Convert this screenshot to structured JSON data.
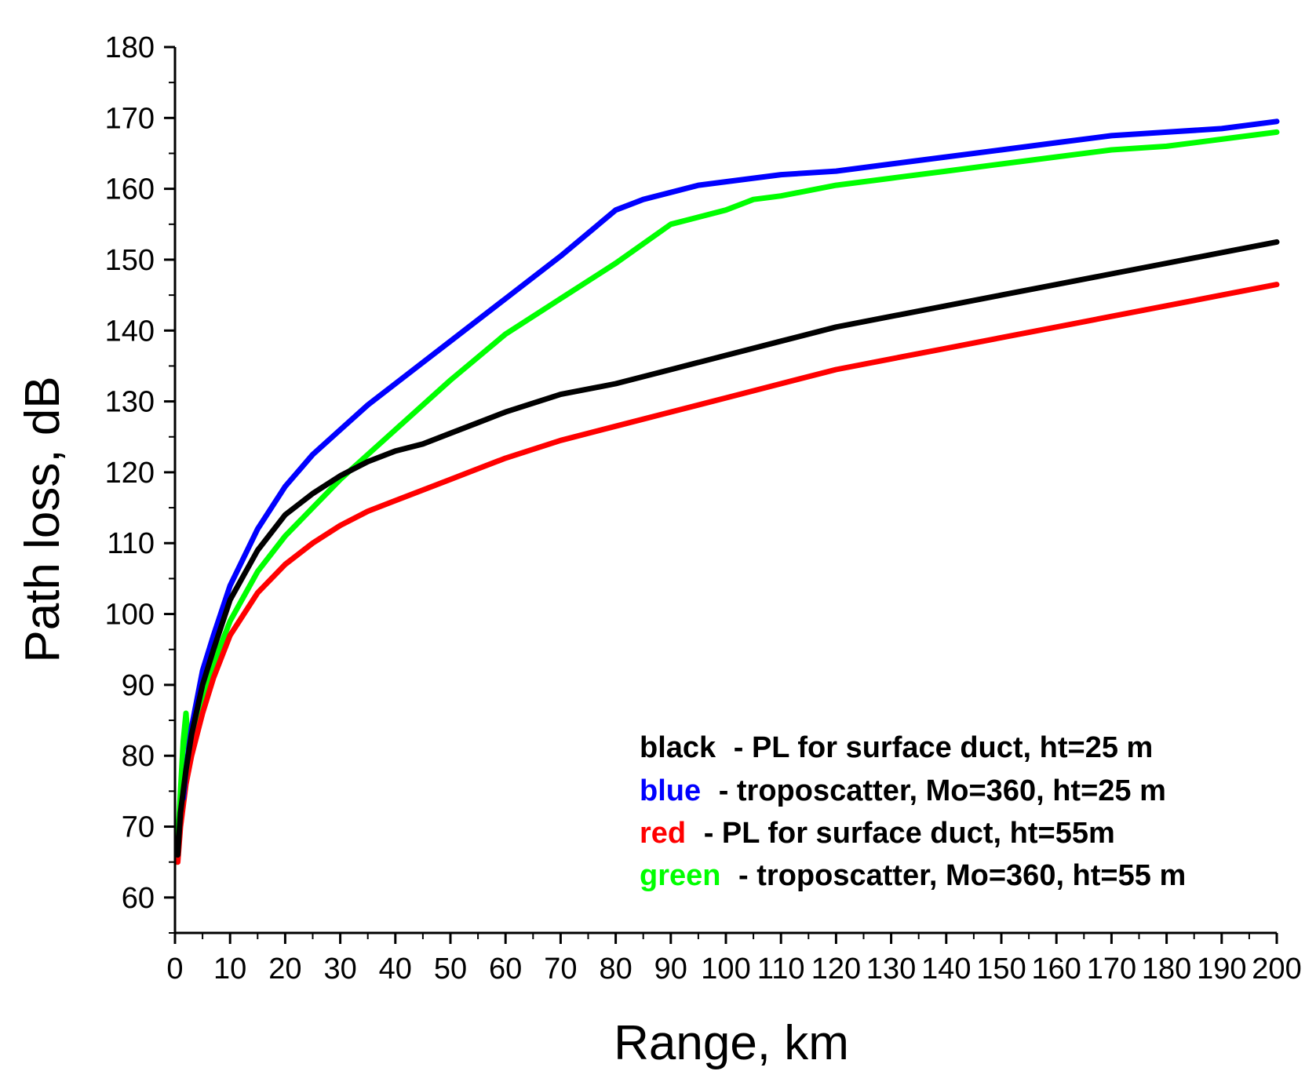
{
  "chart_data": {
    "type": "line",
    "xlabel": "Range, km",
    "ylabel": "Path loss, dB",
    "xlim": [
      0,
      200
    ],
    "ylim": [
      55,
      180
    ],
    "x_ticks": [
      0,
      10,
      20,
      30,
      40,
      50,
      60,
      70,
      80,
      90,
      100,
      110,
      120,
      130,
      140,
      150,
      160,
      170,
      180,
      190,
      200
    ],
    "y_ticks": [
      60,
      70,
      80,
      90,
      100,
      110,
      120,
      130,
      140,
      150,
      160,
      170,
      180
    ],
    "grid": false,
    "legend_position": "bottom-right",
    "series": [
      {
        "name": "black",
        "description": "- PL for surface duct, ht=25 m",
        "color": "#000000",
        "x": [
          0.5,
          1,
          2,
          3,
          5,
          7,
          10,
          15,
          20,
          25,
          30,
          35,
          40,
          45,
          50,
          55,
          60,
          70,
          80,
          90,
          100,
          110,
          120,
          130,
          140,
          150,
          160,
          170,
          180,
          190,
          200
        ],
        "y": [
          66,
          72,
          78,
          83,
          90,
          95,
          102,
          109,
          114,
          117,
          119.5,
          121.5,
          123,
          124,
          125.5,
          127,
          128.5,
          131,
          132.5,
          134.5,
          136.5,
          138.5,
          140.5,
          142,
          143.5,
          145,
          146.5,
          148,
          149.5,
          151,
          152.5
        ]
      },
      {
        "name": "blue",
        "description": "- troposcatter, Mo=360, ht=25 m",
        "color": "#0000ff",
        "x": [
          1.5,
          2,
          3,
          5,
          7,
          10,
          15,
          20,
          25,
          30,
          35,
          40,
          45,
          50,
          55,
          60,
          70,
          80,
          85,
          90,
          95,
          100,
          105,
          110,
          120,
          130,
          140,
          150,
          160,
          170,
          180,
          190,
          200
        ],
        "y": [
          74,
          78,
          84,
          92,
          97,
          104,
          112,
          118,
          122.5,
          126,
          129.5,
          132.5,
          135.5,
          138.5,
          141.5,
          144.5,
          150.5,
          157,
          158.5,
          159.5,
          160.5,
          161,
          161.5,
          162,
          162.5,
          163.5,
          164.5,
          165.5,
          166.5,
          167.5,
          168,
          168.5,
          169.5
        ]
      },
      {
        "name": "red",
        "description": "- PL for surface duct, ht=55m",
        "color": "#ff0000",
        "x": [
          0.5,
          1,
          2,
          3,
          5,
          7,
          10,
          15,
          20,
          25,
          30,
          35,
          40,
          45,
          50,
          55,
          60,
          70,
          80,
          90,
          100,
          110,
          120,
          130,
          140,
          150,
          160,
          170,
          180,
          190,
          200
        ],
        "y": [
          65,
          70,
          76,
          80,
          86,
          91,
          97,
          103,
          107,
          110,
          112.5,
          114.5,
          116,
          117.5,
          119,
          120.5,
          122,
          124.5,
          126.5,
          128.5,
          130.5,
          132.5,
          134.5,
          136,
          137.5,
          139,
          140.5,
          142,
          143.5,
          145,
          146.5
        ]
      },
      {
        "name": "green",
        "description": "- troposcatter, Mo=360, ht=55 m",
        "color": "#00ff00",
        "x": [
          0.3,
          1,
          1.5,
          2,
          2.5,
          3,
          4,
          5,
          7,
          10,
          15,
          20,
          25,
          30,
          35,
          40,
          50,
          60,
          70,
          80,
          90,
          100,
          105,
          110,
          120,
          130,
          140,
          150,
          160,
          170,
          180,
          190,
          200
        ],
        "y": [
          65,
          75,
          82,
          86,
          80,
          81,
          84,
          88,
          93,
          99,
          106,
          111,
          115,
          119,
          122.5,
          126,
          133,
          139.5,
          144.5,
          149.5,
          155,
          157,
          158.5,
          159,
          160.5,
          161.5,
          162.5,
          163.5,
          164.5,
          165.5,
          166,
          167,
          168
        ]
      }
    ]
  }
}
